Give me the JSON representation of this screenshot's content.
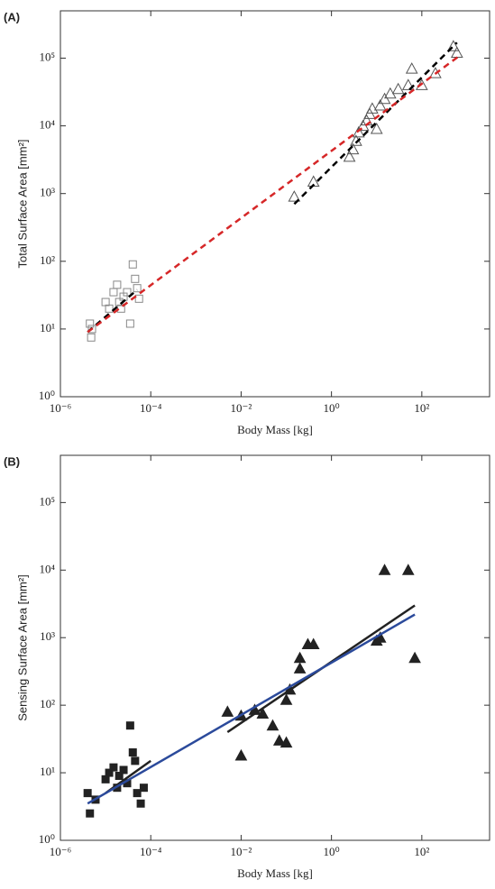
{
  "chart_data": [
    {
      "type": "scatter",
      "panel_label": "(A)",
      "x_label": "Body Mass [kg]",
      "y_label": "Total Surface Area [mm²]",
      "log_x": true,
      "log_y": true,
      "xlim": [
        1e-06,
        3162
      ],
      "ylim": [
        1,
        500000
      ],
      "xticks": [
        {
          "value": 1e-06,
          "label": "10⁻⁶"
        },
        {
          "value": 0.0001,
          "label": "10⁻⁴"
        },
        {
          "value": 0.01,
          "label": "10⁻²"
        },
        {
          "value": 1,
          "label": "10⁰"
        },
        {
          "value": 100,
          "label": "10²"
        }
      ],
      "yticks": [
        {
          "value": 1,
          "label": "10⁰"
        },
        {
          "value": 10,
          "label": "10¹"
        },
        {
          "value": 100,
          "label": "10²"
        },
        {
          "value": 1000,
          "label": "10³"
        },
        {
          "value": 10000,
          "label": "10⁴"
        },
        {
          "value": 100000,
          "label": "10⁵"
        }
      ],
      "series": [
        {
          "marker": "square-open",
          "color": "#888888",
          "x": [
            4.5e-06,
            4.8e-06,
            5e-06,
            1e-05,
            1.2e-05,
            1.5e-05,
            1.8e-05,
            2e-05,
            2.2e-05,
            2.5e-05,
            3e-05,
            3.5e-05,
            4e-05,
            4.5e-05,
            5e-05,
            5.5e-05
          ],
          "values": [
            12,
            7.5,
            10,
            25,
            20,
            35,
            45,
            25,
            20,
            30,
            35,
            12,
            90,
            55,
            40,
            28
          ]
        },
        {
          "marker": "triangle-open",
          "color": "#555555",
          "x": [
            0.15,
            0.4,
            2.5,
            3,
            3.5,
            4,
            5,
            6,
            7,
            8,
            10,
            12,
            15,
            20,
            30,
            50,
            60,
            100,
            200,
            500,
            600
          ],
          "values": [
            900,
            1500,
            3500,
            4500,
            6000,
            8000,
            10000,
            12000,
            15000,
            18000,
            9000,
            20000,
            25000,
            30000,
            35000,
            40000,
            70000,
            40000,
            60000,
            150000,
            120000
          ]
        },
        {
          "marker": "dashed-line",
          "color": "#000000",
          "x": [
            4e-06,
            5e-05,
            0.001,
            0.15,
            600
          ],
          "values": [
            9,
            38,
            null,
            700,
            170000
          ]
        },
        {
          "marker": "dashed-line",
          "color": "#d62728",
          "x": [
            4e-06,
            700
          ],
          "values": [
            9,
            110000
          ]
        }
      ]
    },
    {
      "type": "scatter",
      "panel_label": "(B)",
      "x_label": "Body Mass [kg]",
      "y_label": "Sensing Surface Area [mm²]",
      "log_x": true,
      "log_y": true,
      "xlim": [
        1e-06,
        3162
      ],
      "ylim": [
        1,
        500000
      ],
      "xticks": [
        {
          "value": 1e-06,
          "label": "10⁻⁶"
        },
        {
          "value": 0.0001,
          "label": "10⁻⁴"
        },
        {
          "value": 0.01,
          "label": "10⁻²"
        },
        {
          "value": 1,
          "label": "10⁰"
        },
        {
          "value": 100,
          "label": "10²"
        }
      ],
      "yticks": [
        {
          "value": 1,
          "label": "10⁰"
        },
        {
          "value": 10,
          "label": "10¹"
        },
        {
          "value": 100,
          "label": "10²"
        },
        {
          "value": 1000,
          "label": "10³"
        },
        {
          "value": 10000,
          "label": "10⁴"
        },
        {
          "value": 100000,
          "label": "10⁵"
        }
      ],
      "series": [
        {
          "marker": "square",
          "color": "#222222",
          "x": [
            4e-06,
            4.5e-06,
            6e-06,
            1e-05,
            1.2e-05,
            1.5e-05,
            1.8e-05,
            2e-05,
            2.5e-05,
            3e-05,
            3.5e-05,
            4e-05,
            4.5e-05,
            5e-05,
            6e-05,
            7e-05
          ],
          "values": [
            5,
            2.5,
            4,
            8,
            10,
            12,
            6,
            9,
            11,
            7,
            50,
            20,
            15,
            5,
            3.5,
            6
          ]
        },
        {
          "marker": "triangle",
          "color": "#222222",
          "x": [
            0.005,
            0.01,
            0.01,
            0.02,
            0.03,
            0.05,
            0.07,
            0.1,
            0.1,
            0.12,
            0.2,
            0.3,
            0.4,
            0.2,
            10,
            12,
            15,
            50,
            70
          ],
          "values": [
            80,
            18,
            70,
            85,
            75,
            50,
            30,
            28,
            120,
            170,
            350,
            800,
            800,
            500,
            900,
            1000,
            10000,
            10000,
            500
          ]
        },
        {
          "marker": "line",
          "color": "#222222",
          "x": [
            1e-05,
            0.0001,
            0.001,
            0.005,
            70
          ],
          "values": [
            5,
            15,
            null,
            40,
            3000
          ]
        },
        {
          "marker": "line",
          "color": "#2b4a9b",
          "x": [
            4e-06,
            70
          ],
          "values": [
            3.5,
            2200
          ]
        }
      ]
    }
  ]
}
